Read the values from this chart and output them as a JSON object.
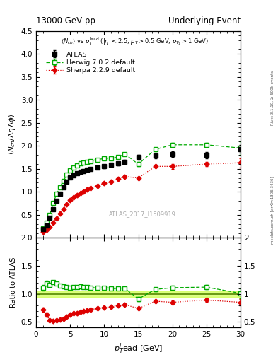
{
  "title_left": "13000 GeV pp",
  "title_right": "Underlying Event",
  "ylabel_main": "<N_{ch} / #Delta#eta delta>",
  "ylabel_ratio": "Ratio to ATLAS",
  "xlabel": "p_{T}^{l}ead [GeV]",
  "watermark": "ATLAS_2017_I1509919",
  "right_label1": "Rivet 3.1.10, ≥ 500k events",
  "right_label2": "mcplots.cern.ch [arXiv:1306.3436]",
  "ylim_main": [
    0,
    4.5
  ],
  "ylim_ratio": [
    0.4,
    2.0
  ],
  "xlim": [
    0,
    30
  ],
  "yticks_main": [
    0.5,
    1.0,
    1.5,
    2.0,
    2.5,
    3.0,
    3.5,
    4.0,
    4.5
  ],
  "yticks_ratio": [
    0.5,
    1.0,
    1.5,
    2.0
  ],
  "xticks": [
    0,
    5,
    10,
    15,
    20,
    25,
    30
  ],
  "atlas_x": [
    1.0,
    1.5,
    2.0,
    2.5,
    3.0,
    3.5,
    4.0,
    4.5,
    5.0,
    5.5,
    6.0,
    6.5,
    7.0,
    7.5,
    8.0,
    9.0,
    10.0,
    11.0,
    12.0,
    13.0,
    15.0,
    17.5,
    20.0,
    25.0,
    30.0
  ],
  "atlas_y": [
    0.18,
    0.27,
    0.43,
    0.62,
    0.8,
    0.96,
    1.1,
    1.22,
    1.31,
    1.36,
    1.4,
    1.43,
    1.45,
    1.48,
    1.5,
    1.53,
    1.55,
    1.58,
    1.61,
    1.65,
    1.75,
    1.78,
    1.82,
    1.8,
    1.93
  ],
  "atlas_yerr": [
    0.02,
    0.02,
    0.02,
    0.02,
    0.02,
    0.02,
    0.02,
    0.03,
    0.03,
    0.03,
    0.03,
    0.03,
    0.03,
    0.03,
    0.03,
    0.03,
    0.04,
    0.04,
    0.04,
    0.04,
    0.05,
    0.05,
    0.06,
    0.07,
    0.08
  ],
  "herwig_x": [
    1.0,
    1.5,
    2.0,
    2.5,
    3.0,
    3.5,
    4.0,
    4.5,
    5.0,
    5.5,
    6.0,
    6.5,
    7.0,
    7.5,
    8.0,
    9.0,
    10.0,
    11.0,
    12.0,
    13.0,
    15.0,
    17.5,
    20.0,
    25.0,
    30.0
  ],
  "herwig_y": [
    0.2,
    0.32,
    0.5,
    0.75,
    0.95,
    1.1,
    1.24,
    1.37,
    1.46,
    1.53,
    1.57,
    1.61,
    1.63,
    1.65,
    1.67,
    1.7,
    1.72,
    1.73,
    1.75,
    1.82,
    1.6,
    1.92,
    2.02,
    2.02,
    1.95
  ],
  "herwig_yerr": [
    0.01,
    0.01,
    0.01,
    0.01,
    0.01,
    0.01,
    0.01,
    0.01,
    0.01,
    0.01,
    0.02,
    0.02,
    0.02,
    0.02,
    0.02,
    0.02,
    0.02,
    0.03,
    0.03,
    0.03,
    0.05,
    0.04,
    0.05,
    0.05,
    0.15
  ],
  "sherpa_x": [
    1.0,
    1.5,
    2.0,
    2.5,
    3.0,
    3.5,
    4.0,
    4.5,
    5.0,
    5.5,
    6.0,
    6.5,
    7.0,
    7.5,
    8.0,
    9.0,
    10.0,
    11.0,
    12.0,
    13.0,
    15.0,
    17.5,
    20.0,
    25.0,
    30.0
  ],
  "sherpa_y": [
    0.13,
    0.17,
    0.23,
    0.32,
    0.42,
    0.52,
    0.62,
    0.72,
    0.82,
    0.88,
    0.92,
    0.97,
    1.0,
    1.05,
    1.08,
    1.13,
    1.18,
    1.22,
    1.28,
    1.33,
    1.3,
    1.55,
    1.55,
    1.6,
    1.63
  ],
  "sherpa_yerr": [
    0.01,
    0.01,
    0.01,
    0.01,
    0.01,
    0.01,
    0.01,
    0.01,
    0.01,
    0.01,
    0.01,
    0.01,
    0.01,
    0.01,
    0.01,
    0.02,
    0.02,
    0.02,
    0.02,
    0.02,
    0.03,
    0.03,
    0.05,
    0.05,
    0.1
  ],
  "atlas_color": "#000000",
  "herwig_color": "#00aa00",
  "sherpa_color": "#dd0000",
  "ratio_herwig_x": [
    1.0,
    1.5,
    2.0,
    2.5,
    3.0,
    3.5,
    4.0,
    4.5,
    5.0,
    5.5,
    6.0,
    6.5,
    7.0,
    7.5,
    8.0,
    9.0,
    10.0,
    11.0,
    12.0,
    13.0,
    15.0,
    17.5,
    20.0,
    25.0,
    30.0
  ],
  "ratio_herwig_y": [
    1.11,
    1.19,
    1.16,
    1.21,
    1.19,
    1.15,
    1.13,
    1.12,
    1.11,
    1.12,
    1.12,
    1.13,
    1.12,
    1.12,
    1.11,
    1.11,
    1.11,
    1.1,
    1.09,
    1.1,
    0.91,
    1.08,
    1.11,
    1.12,
    1.01
  ],
  "ratio_herwig_yerr": [
    0.05,
    0.04,
    0.03,
    0.03,
    0.02,
    0.02,
    0.02,
    0.02,
    0.02,
    0.02,
    0.02,
    0.02,
    0.02,
    0.02,
    0.02,
    0.02,
    0.02,
    0.02,
    0.02,
    0.02,
    0.04,
    0.03,
    0.04,
    0.04,
    0.09
  ],
  "ratio_sherpa_x": [
    1.0,
    1.5,
    2.0,
    2.5,
    3.0,
    3.5,
    4.0,
    4.5,
    5.0,
    5.5,
    6.0,
    6.5,
    7.0,
    7.5,
    8.0,
    9.0,
    10.0,
    11.0,
    12.0,
    13.0,
    15.0,
    17.5,
    20.0,
    25.0,
    30.0
  ],
  "ratio_sherpa_y": [
    0.72,
    0.63,
    0.53,
    0.52,
    0.53,
    0.54,
    0.56,
    0.59,
    0.63,
    0.65,
    0.66,
    0.68,
    0.69,
    0.71,
    0.72,
    0.74,
    0.76,
    0.77,
    0.79,
    0.81,
    0.74,
    0.87,
    0.85,
    0.89,
    0.85
  ],
  "ratio_sherpa_yerr": [
    0.04,
    0.04,
    0.03,
    0.02,
    0.02,
    0.02,
    0.02,
    0.02,
    0.02,
    0.02,
    0.02,
    0.02,
    0.02,
    0.02,
    0.02,
    0.02,
    0.02,
    0.02,
    0.02,
    0.02,
    0.02,
    0.02,
    0.03,
    0.03,
    0.06
  ]
}
